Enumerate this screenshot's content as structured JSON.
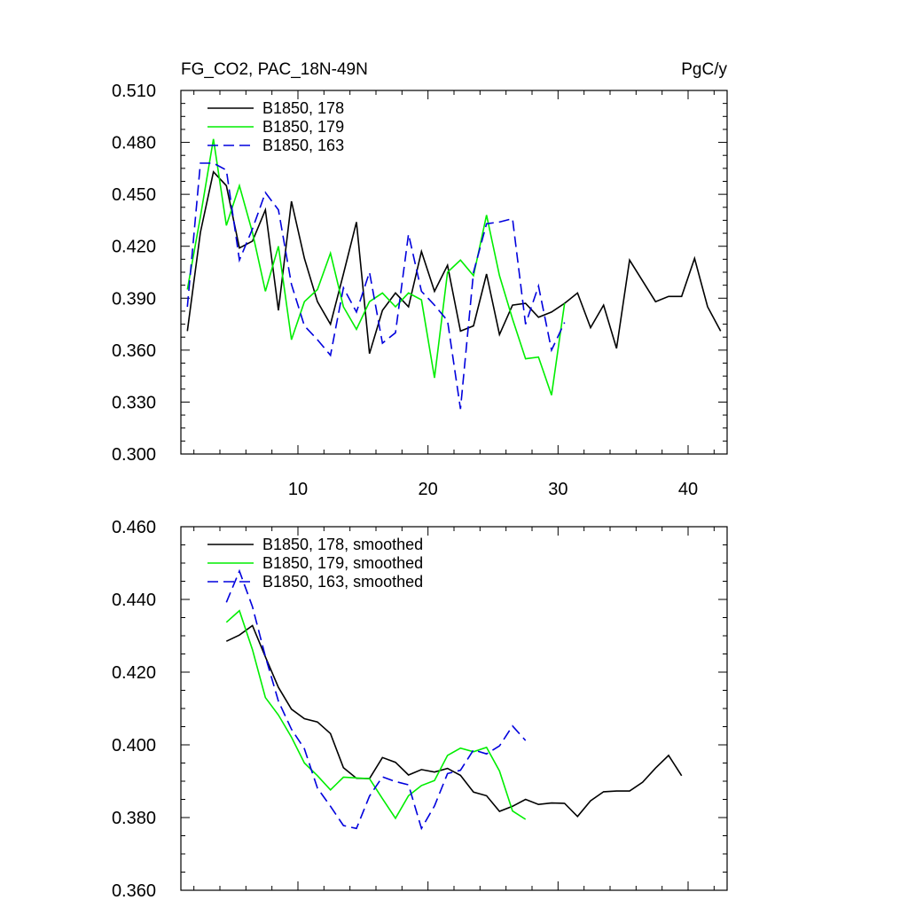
{
  "chart_data": [
    {
      "type": "line",
      "title": "FG_CO2, PAC_18N-49N",
      "units": "PgC/y",
      "xlim": [
        1,
        43
      ],
      "ylim": [
        0.3,
        0.51
      ],
      "xticks": [
        10,
        20,
        30,
        40
      ],
      "xtick_labels": [
        "10",
        "20",
        "30",
        "40"
      ],
      "yticks": [
        0.3,
        0.33,
        0.36,
        0.39,
        0.42,
        0.45,
        0.48,
        0.51
      ],
      "ytick_labels": [
        "0.300",
        "0.330",
        "0.360",
        "0.390",
        "0.420",
        "0.450",
        "0.480",
        "0.510"
      ],
      "legend": "top-left",
      "grid": false,
      "series": [
        {
          "name": "B1850, 178",
          "color": "#000000",
          "dash": "solid",
          "x": [
            1.5,
            2.5,
            3.5,
            4.5,
            5.5,
            6.5,
            7.5,
            8.5,
            9.5,
            10.5,
            11.5,
            12.5,
            13.5,
            14.5,
            15.5,
            16.5,
            17.5,
            18.5,
            19.5,
            20.5,
            21.5,
            22.5,
            23.5,
            24.5,
            25.5,
            26.5,
            27.5,
            28.5,
            29.5,
            30.5,
            31.5,
            32.5,
            33.5,
            34.5,
            35.5,
            36.5,
            37.5,
            38.5,
            39.5,
            40.5,
            41.5,
            42.5
          ],
          "y": [
            0.371,
            0.428,
            0.463,
            0.455,
            0.419,
            0.423,
            0.441,
            0.383,
            0.446,
            0.413,
            0.388,
            0.375,
            0.404,
            0.434,
            0.358,
            0.383,
            0.393,
            0.385,
            0.417,
            0.394,
            0.409,
            0.371,
            0.374,
            0.404,
            0.369,
            0.386,
            0.387,
            0.379,
            0.382,
            0.387,
            0.393,
            0.373,
            0.386,
            0.361,
            0.412,
            0.4,
            0.388,
            0.391,
            0.391,
            0.413,
            0.385,
            0.371
          ]
        },
        {
          "name": "B1850, 179",
          "color": "#00ee00",
          "dash": "solid",
          "x": [
            1.5,
            2.5,
            3.5,
            4.5,
            5.5,
            6.5,
            7.5,
            8.5,
            9.5,
            10.5,
            11.5,
            12.5,
            13.5,
            14.5,
            15.5,
            16.5,
            17.5,
            18.5,
            19.5,
            20.5,
            21.5,
            22.5,
            23.5,
            24.5,
            25.5,
            26.5,
            27.5,
            28.5,
            29.5,
            30.5
          ],
          "y": [
            0.395,
            0.437,
            0.482,
            0.432,
            0.455,
            0.428,
            0.394,
            0.42,
            0.366,
            0.388,
            0.395,
            0.416,
            0.385,
            0.372,
            0.388,
            0.393,
            0.385,
            0.393,
            0.389,
            0.344,
            0.405,
            0.412,
            0.403,
            0.438,
            0.403,
            0.378,
            0.355,
            0.356,
            0.334,
            0.387
          ]
        },
        {
          "name": "B1850, 163",
          "color": "#0000dd",
          "dash": "dashed",
          "x": [
            1.5,
            2.5,
            3.5,
            4.5,
            5.5,
            6.5,
            7.5,
            8.5,
            9.5,
            10.5,
            11.5,
            12.5,
            13.5,
            14.5,
            15.5,
            16.5,
            17.5,
            18.5,
            19.5,
            20.5,
            21.5,
            22.5,
            23.5,
            24.5,
            25.5,
            26.5,
            27.5,
            28.5,
            29.5,
            30.5
          ],
          "y": [
            0.385,
            0.468,
            0.468,
            0.464,
            0.412,
            0.43,
            0.451,
            0.441,
            0.398,
            0.374,
            0.366,
            0.357,
            0.396,
            0.382,
            0.405,
            0.364,
            0.37,
            0.427,
            0.394,
            0.386,
            0.377,
            0.326,
            0.405,
            0.433,
            0.434,
            0.436,
            0.375,
            0.397,
            0.36,
            0.376
          ]
        }
      ]
    },
    {
      "type": "line",
      "xlim": [
        1,
        43
      ],
      "ylim": [
        0.36,
        0.46
      ],
      "xticks": [
        10,
        20,
        30,
        40
      ],
      "yticks": [
        0.36,
        0.38,
        0.4,
        0.42,
        0.44,
        0.46
      ],
      "ytick_labels": [
        "0.360",
        "0.380",
        "0.400",
        "0.420",
        "0.440",
        "0.460"
      ],
      "legend": "top-left",
      "grid": false,
      "series": [
        {
          "name": "B1850, 178, smoothed",
          "color": "#000000",
          "dash": "solid",
          "x": [
            4.5,
            5.5,
            6.5,
            7.5,
            8.5,
            9.5,
            10.5,
            11.5,
            12.5,
            13.5,
            14.5,
            15.5,
            16.5,
            17.5,
            18.5,
            19.5,
            20.5,
            21.5,
            22.5,
            23.5,
            24.5,
            25.5,
            26.5,
            27.5,
            28.5,
            29.5,
            30.5,
            31.5,
            32.5,
            33.5,
            34.5,
            35.5,
            36.5,
            37.5,
            38.5,
            39.5
          ],
          "y": [
            0.4285,
            0.4302,
            0.4328,
            0.4242,
            0.4158,
            0.4098,
            0.4072,
            0.4063,
            0.4031,
            0.3937,
            0.3908,
            0.3907,
            0.3965,
            0.3952,
            0.3917,
            0.3932,
            0.3925,
            0.3935,
            0.3916,
            0.387,
            0.386,
            0.3817,
            0.3831,
            0.385,
            0.3836,
            0.384,
            0.3839,
            0.3803,
            0.3846,
            0.3871,
            0.3873,
            0.3873,
            0.3897,
            0.3936,
            0.3971,
            0.3915
          ]
        },
        {
          "name": "B1850, 179, smoothed",
          "color": "#00ee00",
          "dash": "solid",
          "x": [
            4.5,
            5.5,
            6.5,
            7.5,
            8.5,
            9.5,
            10.5,
            11.5,
            12.5,
            13.5,
            14.5,
            15.5,
            16.5,
            17.5,
            18.5,
            19.5,
            20.5,
            21.5,
            22.5,
            23.5,
            24.5,
            25.5,
            26.5,
            27.5
          ],
          "y": [
            0.4337,
            0.4369,
            0.4262,
            0.413,
            0.4082,
            0.4021,
            0.395,
            0.3915,
            0.3876,
            0.3911,
            0.3909,
            0.3907,
            0.3852,
            0.3798,
            0.386,
            0.3888,
            0.3902,
            0.3971,
            0.3991,
            0.3981,
            0.3993,
            0.3928,
            0.3818,
            0.3795
          ]
        },
        {
          "name": "B1850, 163, smoothed",
          "color": "#0000dd",
          "dash": "dashed",
          "x": [
            4.5,
            5.5,
            6.5,
            7.5,
            8.5,
            9.5,
            10.5,
            11.5,
            12.5,
            13.5,
            14.5,
            15.5,
            16.5,
            17.5,
            18.5,
            19.5,
            20.5,
            21.5,
            22.5,
            23.5,
            24.5,
            25.5,
            26.5,
            27.5
          ],
          "y": [
            0.4392,
            0.4478,
            0.438,
            0.4243,
            0.412,
            0.4043,
            0.3989,
            0.3881,
            0.3831,
            0.3778,
            0.377,
            0.3859,
            0.3912,
            0.3899,
            0.389,
            0.377,
            0.3832,
            0.3921,
            0.393,
            0.3986,
            0.3975,
            0.3997,
            0.4052,
            0.4012
          ]
        }
      ]
    }
  ]
}
